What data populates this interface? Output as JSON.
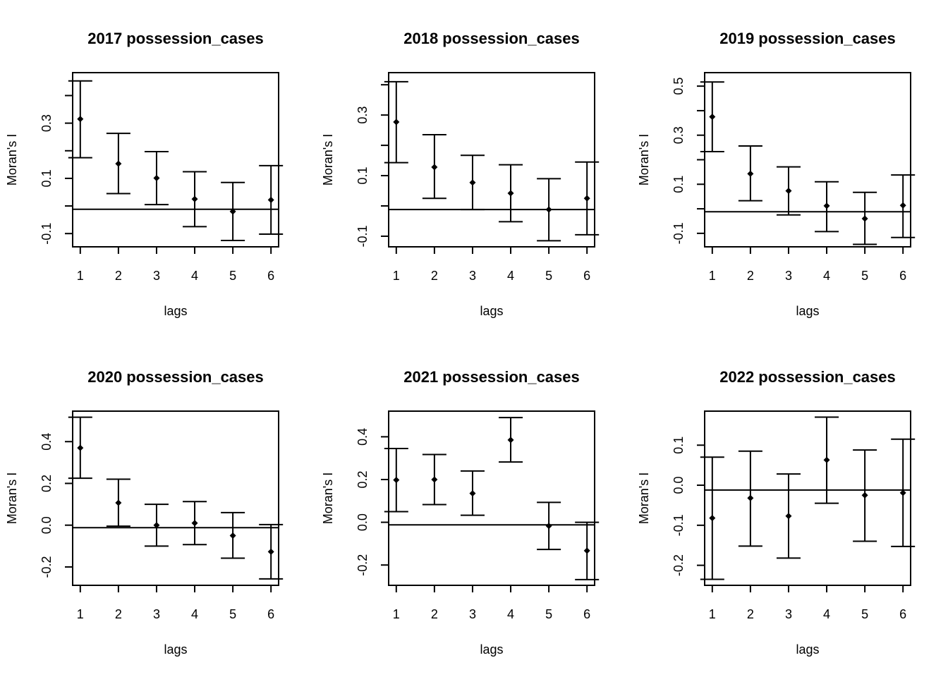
{
  "chart_data": [
    {
      "type": "scatter",
      "title": "2017 possession_cases",
      "xlabel": "lags",
      "ylabel": "Moran's  I",
      "x": [
        1,
        2,
        3,
        4,
        5,
        6
      ],
      "y": [
        0.315,
        0.153,
        0.101,
        0.025,
        -0.02,
        0.022
      ],
      "lower": [
        0.175,
        0.045,
        0.005,
        -0.075,
        -0.125,
        -0.102
      ],
      "upper": [
        0.453,
        0.263,
        0.197,
        0.124,
        0.085,
        0.146
      ],
      "reference_line": -0.012,
      "xlim": [
        0.8,
        6.2
      ],
      "ylim": [
        -0.148,
        0.483
      ],
      "yticks": [
        -0.1,
        0.1,
        0.3
      ],
      "ytick_labels": [
        "-0.1",
        "0.1",
        "0.3"
      ],
      "yminor": [
        0.0,
        0.2,
        0.4
      ],
      "xticks": [
        "1",
        "2",
        "3",
        "4",
        "5",
        "6"
      ]
    },
    {
      "type": "scatter",
      "title": "2018 possession_cases",
      "xlabel": "lags",
      "ylabel": "Moran's  I",
      "x": [
        1,
        2,
        3,
        4,
        5,
        6
      ],
      "y": [
        0.277,
        0.128,
        0.077,
        0.042,
        -0.012,
        0.025
      ],
      "lower": [
        0.143,
        0.025,
        -0.012,
        -0.052,
        -0.115,
        -0.095
      ],
      "upper": [
        0.41,
        0.235,
        0.167,
        0.136,
        0.09,
        0.145
      ],
      "reference_line": -0.012,
      "xlim": [
        0.8,
        6.2
      ],
      "ylim": [
        -0.135,
        0.44
      ],
      "yticks": [
        -0.1,
        0.1,
        0.3
      ],
      "ytick_labels": [
        "-0.1",
        "0.1",
        "0.3"
      ],
      "yminor": [
        0.0,
        0.2,
        0.4
      ],
      "xticks": [
        "1",
        "2",
        "3",
        "4",
        "5",
        "6"
      ]
    },
    {
      "type": "scatter",
      "title": "2019 possession_cases",
      "xlabel": "lags",
      "ylabel": "Moran's  I",
      "x": [
        1,
        2,
        3,
        4,
        5,
        6
      ],
      "y": [
        0.375,
        0.143,
        0.073,
        0.012,
        -0.04,
        0.014
      ],
      "lower": [
        0.233,
        0.033,
        -0.025,
        -0.093,
        -0.145,
        -0.117
      ],
      "upper": [
        0.517,
        0.256,
        0.171,
        0.11,
        0.067,
        0.138
      ],
      "reference_line": -0.012,
      "xlim": [
        0.8,
        6.2
      ],
      "ylim": [
        -0.155,
        0.555
      ],
      "yticks": [
        -0.1,
        0.1,
        0.3,
        0.5
      ],
      "ytick_labels": [
        "-0.1",
        "0.1",
        "0.3",
        "0.5"
      ],
      "yminor": [
        0.0,
        0.2,
        0.4
      ],
      "xticks": [
        "1",
        "2",
        "3",
        "4",
        "5",
        "6"
      ]
    },
    {
      "type": "scatter",
      "title": "2020 possession_cases",
      "xlabel": "lags",
      "ylabel": "Moran's  I",
      "x": [
        1,
        2,
        3,
        4,
        5,
        6
      ],
      "y": [
        0.37,
        0.107,
        0.0,
        0.01,
        -0.05,
        -0.127
      ],
      "lower": [
        0.225,
        -0.005,
        -0.1,
        -0.093,
        -0.158,
        -0.257
      ],
      "upper": [
        0.517,
        0.22,
        0.1,
        0.113,
        0.06,
        0.003
      ],
      "reference_line": -0.012,
      "xlim": [
        0.8,
        6.2
      ],
      "ylim": [
        -0.288,
        0.546
      ],
      "yticks": [
        -0.2,
        0.0,
        0.2,
        0.4
      ],
      "ytick_labels": [
        "-0.2",
        "0.0",
        "0.2",
        "0.4"
      ],
      "yminor": [],
      "xticks": [
        "1",
        "2",
        "3",
        "4",
        "5",
        "6"
      ]
    },
    {
      "type": "scatter",
      "title": "2021 possession_cases",
      "xlabel": "lags",
      "ylabel": "Moran's  I",
      "x": [
        1,
        2,
        3,
        4,
        5,
        6
      ],
      "y": [
        0.198,
        0.2,
        0.135,
        0.385,
        -0.017,
        -0.133
      ],
      "lower": [
        0.05,
        0.083,
        0.033,
        0.282,
        -0.127,
        -0.268
      ],
      "upper": [
        0.345,
        0.317,
        0.24,
        0.49,
        0.093,
        0.0
      ],
      "reference_line": -0.012,
      "xlim": [
        0.8,
        6.2
      ],
      "ylim": [
        -0.295,
        0.52
      ],
      "yticks": [
        -0.2,
        0.0,
        0.2,
        0.4
      ],
      "ytick_labels": [
        "-0.2",
        "0.0",
        "0.2",
        "0.4"
      ],
      "yminor": [],
      "xticks": [
        "1",
        "2",
        "3",
        "4",
        "5",
        "6"
      ]
    },
    {
      "type": "scatter",
      "title": "2022 possession_cases",
      "xlabel": "lags",
      "ylabel": "Moran's  I",
      "x": [
        1,
        2,
        3,
        4,
        5,
        6
      ],
      "y": [
        -0.082,
        -0.032,
        -0.077,
        0.063,
        -0.025,
        -0.019
      ],
      "lower": [
        -0.235,
        -0.152,
        -0.182,
        -0.045,
        -0.14,
        -0.153
      ],
      "upper": [
        0.07,
        0.085,
        0.028,
        0.17,
        0.088,
        0.115
      ],
      "reference_line": -0.012,
      "xlim": [
        0.8,
        6.2
      ],
      "ylim": [
        -0.25,
        0.185
      ],
      "yticks": [
        -0.2,
        -0.1,
        0.0,
        0.1
      ],
      "ytick_labels": [
        "-0.2",
        "-0.1",
        "0.0",
        "0.1"
      ],
      "yminor": [],
      "xticks": [
        "1",
        "2",
        "3",
        "4",
        "5",
        "6"
      ]
    }
  ]
}
